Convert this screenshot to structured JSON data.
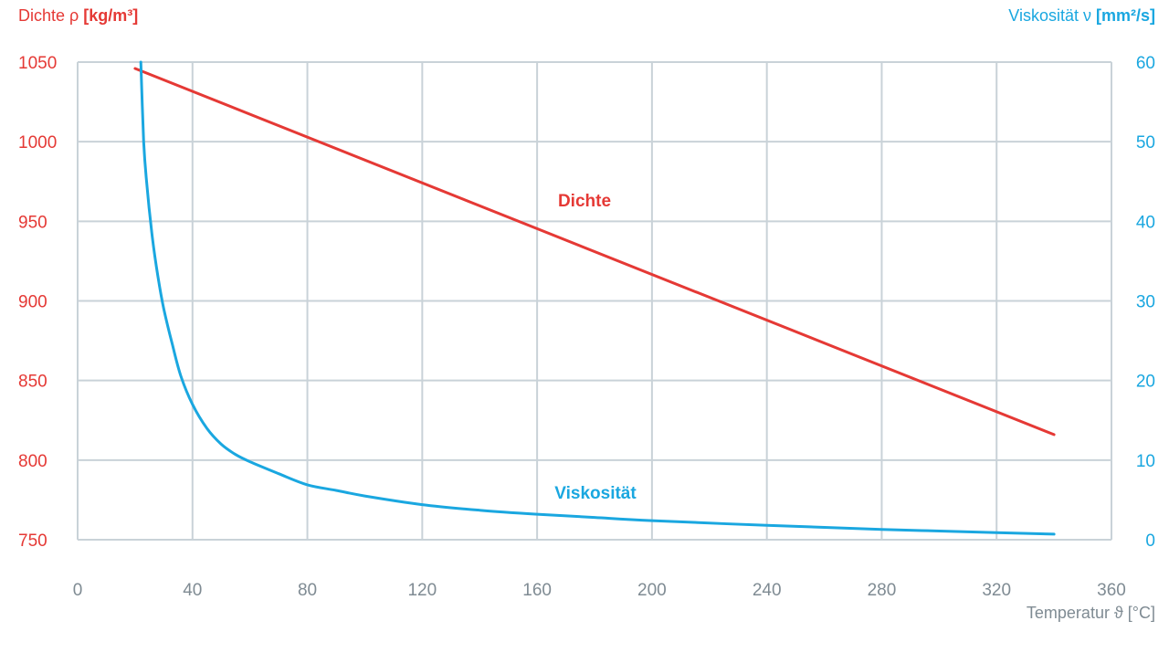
{
  "chart_data": {
    "type": "line",
    "colors": {
      "density": "#e53935",
      "viscosity": "#1aa7e0",
      "grid": "#c9d2d8",
      "xaxis_text": "#7f8b93"
    },
    "left_axis": {
      "title_prefix": "Dichte ρ ",
      "title_unit": "[kg/m³]",
      "ylim": [
        750,
        1050
      ],
      "ticks": [
        "750",
        "800",
        "850",
        "900",
        "950",
        "1000",
        "1050"
      ]
    },
    "right_axis": {
      "title_prefix": "Viskosität ν ",
      "title_unit": "[mm²/s]",
      "ylim": [
        0,
        60
      ],
      "ticks": [
        "0",
        "10",
        "20",
        "30",
        "40",
        "50",
        "60"
      ]
    },
    "x_axis": {
      "title_prefix": "Temperatur ϑ ",
      "title_unit": "[°C]",
      "xlim": [
        0,
        360
      ],
      "ticks": [
        "0",
        "40",
        "80",
        "120",
        "160",
        "200",
        "240",
        "280",
        "320",
        "360"
      ]
    },
    "grid": true,
    "series": [
      {
        "name": "Dichte",
        "axis": "left",
        "x": [
          20,
          340
        ],
        "values": [
          1046,
          816
        ]
      },
      {
        "name": "Viskosität",
        "axis": "right",
        "x": [
          22,
          23,
          24,
          26,
          28,
          30,
          33,
          36,
          40,
          45,
          50,
          55,
          60,
          70,
          80,
          90,
          100,
          120,
          140,
          160,
          180,
          200,
          240,
          280,
          320,
          340
        ],
        "values": [
          60,
          50,
          45,
          38,
          33,
          29,
          24.5,
          20.5,
          17,
          14,
          12,
          10.7,
          9.8,
          8.3,
          6.9,
          6.2,
          5.5,
          4.4,
          3.7,
          3.2,
          2.8,
          2.4,
          1.8,
          1.3,
          0.9,
          0.7
        ]
      }
    ]
  }
}
